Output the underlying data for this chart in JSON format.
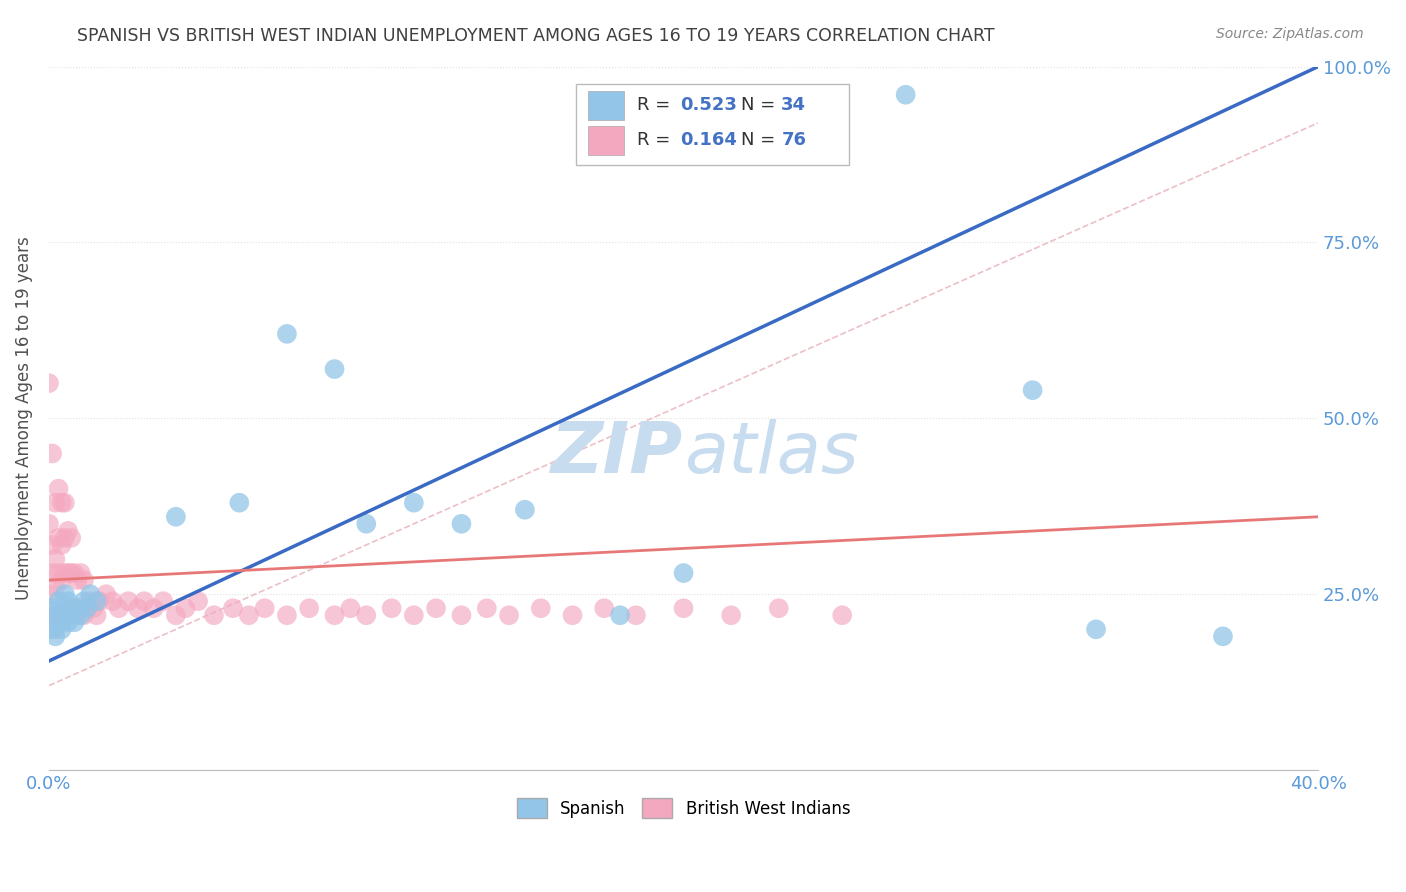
{
  "title": "SPANISH VS BRITISH WEST INDIAN UNEMPLOYMENT AMONG AGES 16 TO 19 YEARS CORRELATION CHART",
  "source": "Source: ZipAtlas.com",
  "ylabel": "Unemployment Among Ages 16 to 19 years",
  "xlim": [
    0.0,
    0.4
  ],
  "ylim": [
    0.0,
    1.0
  ],
  "spanish_R": 0.523,
  "spanish_N": 34,
  "bwi_R": 0.164,
  "bwi_N": 76,
  "spanish_color": "#92C5E8",
  "bwi_color": "#F4A8C0",
  "spanish_line_color": "#3A6BC4",
  "bwi_line_color": "#E87878",
  "ref_line_color": "#D8A0A8",
  "background_color": "#FFFFFF",
  "grid_color": "#DDDDDD",
  "title_color": "#404040",
  "axis_label_color": "#505050",
  "tick_color": "#5A9AD8",
  "legend_color": "#4472C4",
  "watermark_color": "#C8DCF0",
  "spanish_x": [
    0.001,
    0.001,
    0.002,
    0.002,
    0.003,
    0.003,
    0.004,
    0.004,
    0.005,
    0.005,
    0.006,
    0.006,
    0.007,
    0.008,
    0.009,
    0.01,
    0.011,
    0.012,
    0.013,
    0.015,
    0.04,
    0.06,
    0.075,
    0.09,
    0.1,
    0.115,
    0.13,
    0.15,
    0.18,
    0.2,
    0.27,
    0.31,
    0.33,
    0.37
  ],
  "spanish_y": [
    0.2,
    0.23,
    0.19,
    0.22,
    0.21,
    0.24,
    0.2,
    0.23,
    0.22,
    0.25,
    0.21,
    0.24,
    0.22,
    0.21,
    0.23,
    0.22,
    0.24,
    0.23,
    0.25,
    0.24,
    0.36,
    0.38,
    0.62,
    0.57,
    0.35,
    0.38,
    0.35,
    0.37,
    0.22,
    0.28,
    0.96,
    0.54,
    0.2,
    0.19
  ],
  "bwi_x": [
    0.0,
    0.0,
    0.0,
    0.001,
    0.001,
    0.001,
    0.001,
    0.002,
    0.002,
    0.002,
    0.002,
    0.003,
    0.003,
    0.003,
    0.003,
    0.004,
    0.004,
    0.004,
    0.004,
    0.005,
    0.005,
    0.005,
    0.005,
    0.006,
    0.006,
    0.006,
    0.007,
    0.007,
    0.007,
    0.008,
    0.008,
    0.009,
    0.009,
    0.01,
    0.01,
    0.011,
    0.011,
    0.012,
    0.013,
    0.014,
    0.015,
    0.016,
    0.018,
    0.02,
    0.022,
    0.025,
    0.028,
    0.03,
    0.033,
    0.036,
    0.04,
    0.043,
    0.047,
    0.052,
    0.058,
    0.063,
    0.068,
    0.075,
    0.082,
    0.09,
    0.095,
    0.1,
    0.108,
    0.115,
    0.122,
    0.13,
    0.138,
    0.145,
    0.155,
    0.165,
    0.175,
    0.185,
    0.2,
    0.215,
    0.23,
    0.25
  ],
  "bwi_y": [
    0.25,
    0.35,
    0.55,
    0.22,
    0.28,
    0.32,
    0.45,
    0.2,
    0.26,
    0.3,
    0.38,
    0.22,
    0.28,
    0.33,
    0.4,
    0.22,
    0.27,
    0.32,
    0.38,
    0.22,
    0.28,
    0.33,
    0.38,
    0.23,
    0.28,
    0.34,
    0.22,
    0.28,
    0.33,
    0.23,
    0.28,
    0.22,
    0.27,
    0.23,
    0.28,
    0.22,
    0.27,
    0.23,
    0.24,
    0.23,
    0.22,
    0.24,
    0.25,
    0.24,
    0.23,
    0.24,
    0.23,
    0.24,
    0.23,
    0.24,
    0.22,
    0.23,
    0.24,
    0.22,
    0.23,
    0.22,
    0.23,
    0.22,
    0.23,
    0.22,
    0.23,
    0.22,
    0.23,
    0.22,
    0.23,
    0.22,
    0.23,
    0.22,
    0.23,
    0.22,
    0.23,
    0.22,
    0.23,
    0.22,
    0.23,
    0.22
  ]
}
